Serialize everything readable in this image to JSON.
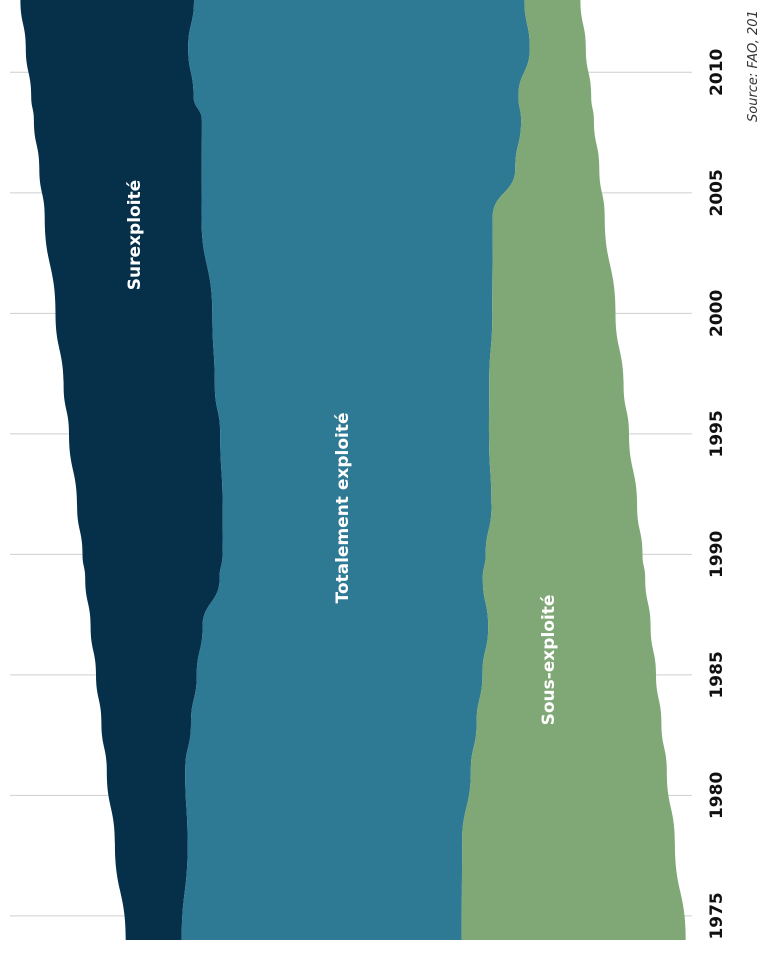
{
  "chart_data": {
    "type": "streamgraph",
    "x": [
      1974,
      1978,
      1981,
      1983,
      1985,
      1987,
      1989,
      1990,
      1992,
      1995,
      1997,
      2000,
      2004,
      2006,
      2008,
      2009,
      2011,
      2013
    ],
    "xlim": [
      1974,
      2013
    ],
    "xticks": [
      1975,
      1980,
      1985,
      1990,
      1995,
      2000,
      2005,
      2010
    ],
    "series": [
      {
        "name": "Surexploité",
        "color": "#06304a",
        "values": [
          10,
          13,
          14,
          16,
          18,
          20,
          24,
          25,
          26,
          27,
          27,
          28,
          28,
          29,
          30,
          29,
          29,
          31
        ]
      },
      {
        "name": "Totalement exploité",
        "color": "#2e7993",
        "values": [
          50,
          49,
          51,
          51,
          51,
          51,
          47,
          47,
          48,
          48,
          49,
          50,
          52,
          56,
          57,
          58,
          61,
          59
        ]
      },
      {
        "name": "Sous-exploité",
        "color": "#80a877",
        "values": [
          40,
          38,
          35,
          33,
          31,
          29,
          29,
          28,
          26,
          25,
          24,
          22,
          20,
          15,
          13,
          13,
          10,
          10
        ]
      }
    ],
    "grid": true,
    "source": "Source: FAO, 201"
  }
}
